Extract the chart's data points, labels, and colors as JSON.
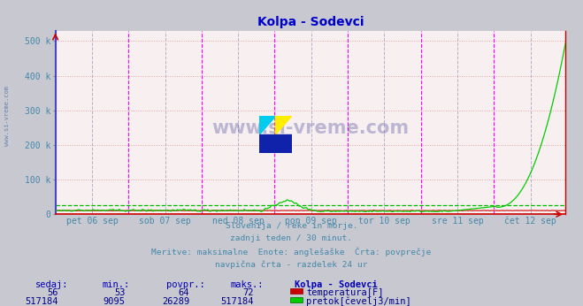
{
  "title": "Kolpa - Sodevci",
  "bg_color": "#c8c8d0",
  "plot_bg_color": "#f8f0f0",
  "grid_color_h": "#e8a0a0",
  "grid_color_v": "#c0c0c8",
  "title_color": "#0000cc",
  "axis_label_color": "#4488aa",
  "ylim": [
    0,
    530000
  ],
  "yticks": [
    0,
    100000,
    200000,
    300000,
    400000,
    500000
  ],
  "ytick_labels": [
    "0",
    "100 k",
    "200 k",
    "300 k",
    "400 k",
    "500 k"
  ],
  "day_labels": [
    "pet 06 sep",
    "sob 07 sep",
    "ned 08 sep",
    "pon 09 sep",
    "tor 10 sep",
    "sre 11 sep",
    "čet 12 sep"
  ],
  "n_points": 336,
  "flow_avg": 26289,
  "temp_color": "#cc0000",
  "flow_color": "#00cc00",
  "avg_line_color": "#00bb00",
  "magenta_vline_color": "#ff00ff",
  "gray_vline_color": "#8888aa",
  "left_border_color": "#4444cc",
  "bottom_border_color": "#cc0000",
  "right_border_color": "#cc0000",
  "footer_lines": [
    "Slovenija / reke in morje.",
    "zadnji teden / 30 minut.",
    "Meritve: maksimalne  Enote: anglešaške  Črta: povprečje",
    "navpična črta - razdelek 24 ur"
  ],
  "stats_headers": [
    "sedaj:",
    "min.:",
    "povpr.:",
    "maks.:",
    "Kolpa - Sodevci"
  ],
  "stats_temp": [
    "56",
    "53",
    "64",
    "72"
  ],
  "stats_flow": [
    "517184",
    "9095",
    "26289",
    "517184"
  ],
  "legend": [
    {
      "label": "temperatura[F]",
      "color": "#cc0000"
    },
    {
      "label": "pretok[čevelj3/min]",
      "color": "#00cc00"
    }
  ],
  "watermark": "www.si-vreme.com",
  "logo_colors": [
    "#00ccff",
    "#ffff00",
    "#0000aa"
  ],
  "sidebar_text": "www.si-vreme.com"
}
